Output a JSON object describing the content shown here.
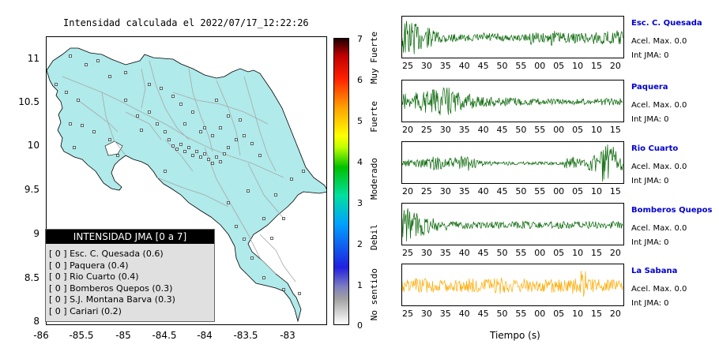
{
  "map": {
    "title": "Intensidad calculada el 2022/07/17_12:22:26",
    "yticks": [
      "11",
      "10.5",
      "10",
      "9.5",
      "9",
      "8.5",
      "8"
    ],
    "xticks": [
      "-86",
      "-85.5",
      "-85",
      "-84.5",
      "-84",
      "-83.5",
      "-83"
    ],
    "colors": {
      "land": "#b0eaea",
      "roads": "#a8a8a8",
      "station": "#000000"
    },
    "legend": {
      "title": "INTENSIDAD JMA [0 a 7]",
      "items": [
        "[ 0 ]  Esc. C. Quesada (0.6)",
        "[ 0 ]  Paquera (0.4)",
        "[ 0 ]  Rio Cuarto (0.4)",
        "[ 0 ]  Bomberos Quepos (0.3)",
        "[ 0 ]  S.J. Montana Barva (0.3)",
        "[ 0 ]  Cariari (0.2)"
      ]
    }
  },
  "scale": {
    "numbers": [
      "7",
      "6",
      "5",
      "4",
      "3",
      "2",
      "1",
      "0"
    ],
    "labels": [
      "Muy Fuerte",
      "Fuerte",
      "Moderado",
      "Debil",
      "No sentido"
    ]
  },
  "stations": [
    {
      "name": "Esc. C. Quesada",
      "acc": "Acel. Max. 0.0",
      "jma": "Int JMA: 0",
      "color": "#006400",
      "ticks": [
        "25",
        "30",
        "35",
        "40",
        "45",
        "50",
        "55",
        "00",
        "05",
        "10",
        "15",
        "20"
      ],
      "env": [
        1.0,
        0.9,
        0.7,
        0.55,
        0.4,
        0.3,
        0.25,
        0.2,
        0.18,
        0.18,
        0.22,
        0.3,
        0.25,
        0.2,
        0.15,
        0.15,
        0.2,
        0.35,
        0.3,
        0.25,
        0.4,
        0.3,
        0.25,
        0.3,
        0.3,
        0.35,
        0.3,
        0.35,
        0.3,
        0.4
      ]
    },
    {
      "name": "Paquera",
      "acc": "Acel. Max. 0.0",
      "jma": "Int JMA: 0",
      "color": "#006400",
      "ticks": [
        "20",
        "25",
        "30",
        "35",
        "40",
        "45",
        "50",
        "55",
        "00",
        "05",
        "10",
        "15"
      ],
      "env": [
        0.45,
        0.5,
        0.55,
        0.6,
        0.65,
        0.8,
        0.75,
        0.55,
        0.35,
        0.4,
        0.3,
        0.28,
        0.3,
        0.25,
        0.25,
        0.22,
        0.2,
        0.2,
        0.18,
        0.18,
        0.15,
        0.15,
        0.15,
        0.15,
        0.15,
        0.15,
        0.15,
        0.18,
        0.18,
        0.2
      ]
    },
    {
      "name": "Rio Cuarto",
      "acc": "Acel. Max. 0.0",
      "jma": "Int JMA: 0",
      "color": "#006400",
      "ticks": [
        "20",
        "25",
        "30",
        "35",
        "40",
        "45",
        "50",
        "55",
        "00",
        "05",
        "10",
        "15"
      ],
      "env": [
        0.2,
        0.22,
        0.25,
        0.3,
        0.35,
        0.3,
        0.28,
        0.35,
        0.4,
        0.25,
        0.15,
        0.12,
        0.12,
        0.1,
        0.1,
        0.08,
        0.08,
        0.08,
        0.08,
        0.08,
        0.08,
        0.08,
        0.3,
        0.35,
        0.3,
        0.45,
        0.7,
        1.0,
        0.9,
        0.4
      ]
    },
    {
      "name": "Bomberos Quepos",
      "acc": "Acel. Max. 0.0",
      "jma": "Int JMA: 0",
      "color": "#006400",
      "ticks": [
        "25",
        "30",
        "35",
        "40",
        "45",
        "50",
        "55",
        "00",
        "05",
        "10",
        "15",
        "20"
      ],
      "env": [
        1.0,
        0.85,
        0.6,
        0.45,
        0.35,
        0.3,
        0.25,
        0.2,
        0.2,
        0.2,
        0.18,
        0.18,
        0.2,
        0.2,
        0.2,
        0.18,
        0.2,
        0.2,
        0.18,
        0.2,
        0.18,
        0.2,
        0.2,
        0.18,
        0.18,
        0.2,
        0.2,
        0.18,
        0.2,
        0.2
      ]
    },
    {
      "name": "La Sabana",
      "acc": "Acel. Max. 0.0",
      "jma": "Int JMA: 0",
      "color": "#ffaa00",
      "ticks": [
        "25",
        "30",
        "35",
        "40",
        "45",
        "50",
        "55",
        "00",
        "05",
        "10",
        "15",
        "20"
      ],
      "env": [
        0.35,
        0.4,
        0.35,
        0.4,
        0.35,
        0.3,
        0.35,
        0.3,
        0.35,
        0.4,
        0.35,
        0.35,
        0.4,
        0.45,
        0.35,
        0.35,
        0.4,
        0.35,
        0.3,
        0.35,
        0.4,
        0.35,
        0.3,
        0.45,
        1.0,
        0.4,
        0.35,
        0.3,
        0.35,
        0.35
      ]
    }
  ],
  "xlabel": "Tiempo (s)"
}
